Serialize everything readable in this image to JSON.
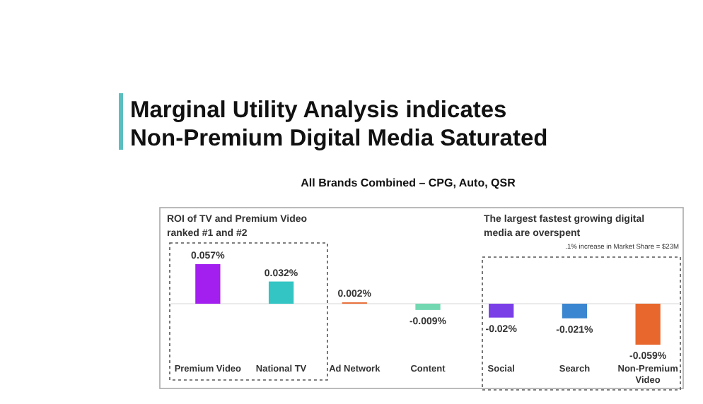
{
  "chart_data": {
    "type": "bar",
    "title": "Marginal Utility Analysis indicates Non-Premium Digital Media Saturated",
    "subtitle": "All Brands Combined – CPG, Auto, QSR",
    "categories": [
      "Premium Video",
      "National TV",
      "Ad Network",
      "Content",
      "Social",
      "Search",
      "Non-Premium Video"
    ],
    "values": [
      0.057,
      0.032,
      0.002,
      -0.009,
      -0.02,
      -0.021,
      -0.059
    ],
    "colors": [
      "#a21ff0",
      "#33c4c4",
      "#e8703a",
      "#72d8b2",
      "#7b3fe8",
      "#3a86d0",
      "#e8672c"
    ],
    "value_labels": [
      "0.057%",
      "0.032%",
      "0.002%",
      "-0.009%",
      "-0.02%",
      "-0.021%",
      "-0.059%"
    ],
    "annotations": [
      "ROI of TV and Premium Video ranked #1 and #2",
      "The largest fastest growing digital media are overspent",
      ".1% increase in Market Share = $23M"
    ]
  }
}
